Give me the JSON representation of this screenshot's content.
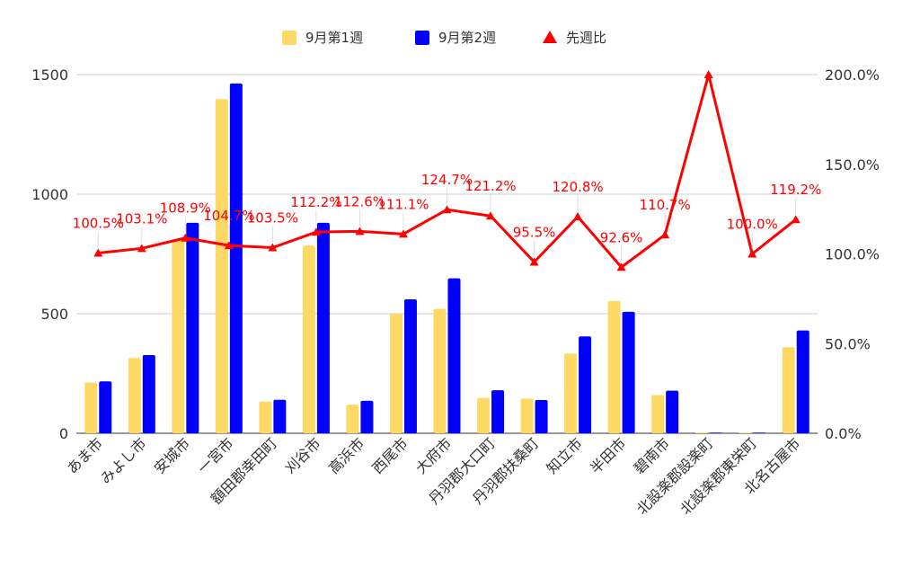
{
  "chart_data": {
    "type": "bar",
    "categories": [
      "あま市",
      "みよし市",
      "安城市",
      "一宮市",
      "額田郡幸田町",
      "刈谷市",
      "高浜市",
      "西尾市",
      "大府市",
      "丹羽郡大口町",
      "丹羽郡扶桑町",
      "知立市",
      "半田市",
      "碧南市",
      "北設楽郡設楽町",
      "北設楽郡東栄町",
      "北名古屋市"
    ],
    "series": [
      {
        "name": "9月第1週",
        "color": "#ffd966",
        "values": [
          212,
          315,
          808,
          1398,
          133,
          785,
          120,
          500,
          520,
          148,
          145,
          333,
          553,
          160,
          1,
          2,
          360
        ]
      },
      {
        "name": "9月第2週",
        "color": "#0000ff",
        "values": [
          217,
          327,
          880,
          1463,
          140,
          880,
          136,
          560,
          648,
          180,
          139,
          405,
          508,
          178,
          2,
          2,
          430
        ]
      }
    ],
    "line_series": {
      "name": "先週比",
      "color": "#ff0000",
      "values": [
        100.5,
        103.1,
        108.9,
        104.7,
        103.5,
        112.2,
        112.6,
        111.1,
        124.7,
        121.2,
        95.5,
        120.8,
        92.6,
        110.7,
        200.0,
        100.0,
        119.2
      ],
      "labels": [
        "100.5%",
        "103.1%",
        "108.9%",
        "104.7%",
        "103.5%",
        "112.2%",
        "112.6%",
        "111.1%",
        "124.7%",
        "121.2%",
        "95.5%",
        "120.8%",
        "92.6%",
        "110.7%",
        "",
        "100.0%",
        "119.2%"
      ]
    },
    "y_left": {
      "ticks": [
        0,
        500,
        1000,
        1500
      ],
      "range": [
        0,
        1500
      ]
    },
    "y_right": {
      "ticks": [
        0,
        50,
        100,
        150,
        200
      ],
      "tick_labels": [
        "0.0%",
        "50.0%",
        "100.0%",
        "150.0%",
        "200.0%"
      ],
      "range": [
        0,
        200
      ]
    },
    "grid": true,
    "legend_position": "top-center"
  }
}
